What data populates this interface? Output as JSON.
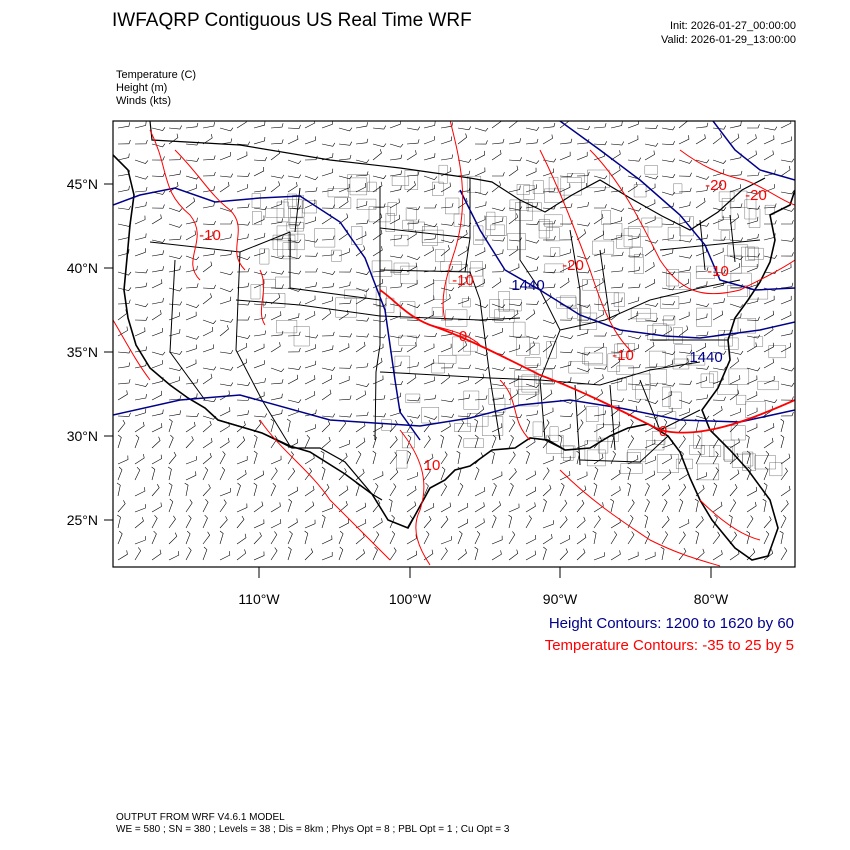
{
  "title": "IWFAQRP Contiguous US Real Time WRF",
  "init": "Init: 2026-01-27_00:00:00",
  "valid": "Valid: 2026-01-29_13:00:00",
  "fields": [
    "Temperature   (C)",
    "Height   (m)",
    "Winds   (kts)"
  ],
  "lat_labels": [
    "45°N",
    "40°N",
    "35°N",
    "30°N",
    "25°N"
  ],
  "lon_labels": [
    "110°W",
    "100°W",
    "90°W",
    "80°W"
  ],
  "height_contours_note": "Height Contours: 1200 to 1620 by 60",
  "temperature_contours_note": "Temperature Contours: -35 to 25 by 5",
  "footer": {
    "line1": "OUTPUT FROM WRF V4.6.1 MODEL",
    "line2": "WE = 580 ; SN = 380 ; Levels = 38 ; Dis = 8km ; Phys Opt = 8 ; PBL Opt = 1 ; Cu Opt = 3"
  },
  "contour_labels": {
    "height": [
      "1440",
      "1440"
    ],
    "temperature": [
      "-20",
      "-20",
      "-10",
      "-10",
      "-10",
      "0",
      "0",
      "10",
      "-10",
      "-20"
    ]
  },
  "colors": {
    "height": "#00008b",
    "temperature": "#ff0000",
    "boundaries": "#000000"
  }
}
